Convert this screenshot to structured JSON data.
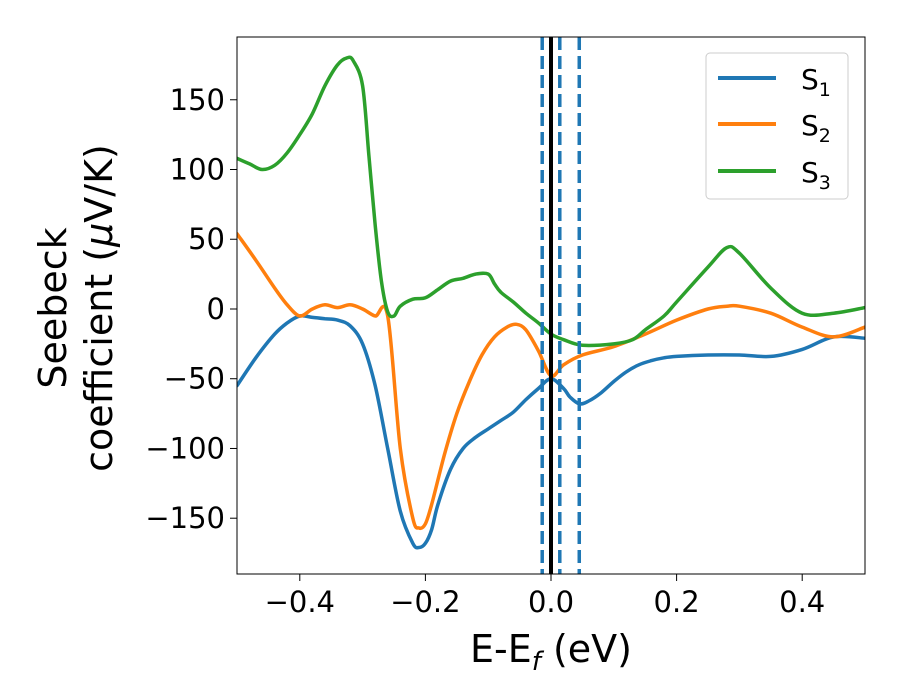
{
  "chart_data": {
    "type": "line",
    "xlabel": "E-E",
    "xlabel_sub": "f",
    "xlabel_unit": " (eV)",
    "ylabel_line1": "Seebeck",
    "ylabel_line2": "coefficient  (",
    "ylabel_mu": "μ",
    "ylabel_unit": "V/K)",
    "xlim": [
      -0.5,
      0.5
    ],
    "ylim": [
      -190,
      195
    ],
    "xticks": [
      -0.4,
      -0.2,
      0.0,
      0.2,
      0.4
    ],
    "xtick_labels": [
      "−0.4",
      "−0.2",
      "0.0",
      "0.2",
      "0.4"
    ],
    "yticks": [
      -150,
      -100,
      -50,
      0,
      50,
      100,
      150
    ],
    "ytick_labels": [
      "−150",
      "−100",
      "−50",
      "0",
      "50",
      "100",
      "150"
    ],
    "grid": false,
    "legend_position": "top-right",
    "vlines": [
      {
        "x": 0.0,
        "style": "solid",
        "color": "#000000"
      },
      {
        "x": -0.014,
        "style": "dashed",
        "color": "#1f77b4"
      },
      {
        "x": 0.014,
        "style": "dashed",
        "color": "#1f77b4"
      },
      {
        "x": 0.045,
        "style": "dashed",
        "color": "#1f77b4"
      }
    ],
    "series": [
      {
        "name": "S",
        "sub": "1",
        "color": "#1f77b4",
        "x": [
          -0.5,
          -0.47,
          -0.44,
          -0.42,
          -0.4,
          -0.38,
          -0.36,
          -0.34,
          -0.32,
          -0.3,
          -0.28,
          -0.26,
          -0.24,
          -0.22,
          -0.21,
          -0.2,
          -0.19,
          -0.18,
          -0.16,
          -0.14,
          -0.12,
          -0.1,
          -0.08,
          -0.06,
          -0.04,
          -0.02,
          0.0,
          0.02,
          0.03,
          0.045,
          0.06,
          0.08,
          0.1,
          0.12,
          0.14,
          0.16,
          0.18,
          0.2,
          0.25,
          0.3,
          0.35,
          0.4,
          0.45,
          0.5
        ],
        "y": [
          -55,
          -35,
          -18,
          -10,
          -5,
          -6,
          -7,
          -8,
          -12,
          -25,
          -55,
          -100,
          -145,
          -168,
          -171,
          -168,
          -158,
          -140,
          -115,
          -100,
          -92,
          -86,
          -80,
          -74,
          -65,
          -57,
          -50,
          -57,
          -63,
          -68,
          -66,
          -60,
          -52,
          -45,
          -40,
          -37,
          -35,
          -34,
          -33,
          -33,
          -34,
          -29,
          -20,
          -21
        ]
      },
      {
        "name": "S",
        "sub": "2",
        "color": "#ff7f0e",
        "x": [
          -0.5,
          -0.47,
          -0.44,
          -0.42,
          -0.4,
          -0.38,
          -0.36,
          -0.34,
          -0.32,
          -0.3,
          -0.28,
          -0.26,
          -0.24,
          -0.22,
          -0.21,
          -0.2,
          -0.19,
          -0.17,
          -0.15,
          -0.13,
          -0.11,
          -0.09,
          -0.07,
          -0.055,
          -0.04,
          -0.02,
          0.0,
          0.02,
          0.05,
          0.1,
          0.15,
          0.2,
          0.25,
          0.28,
          0.3,
          0.35,
          0.4,
          0.45,
          0.5
        ],
        "y": [
          54,
          35,
          15,
          3,
          -5,
          0,
          3,
          1,
          3,
          0,
          -5,
          -5,
          -100,
          -150,
          -157,
          -154,
          -140,
          -105,
          -75,
          -52,
          -33,
          -20,
          -13,
          -11,
          -15,
          -30,
          -48,
          -40,
          -33,
          -27,
          -18,
          -8,
          0,
          2,
          2,
          -3,
          -13,
          -20,
          -13
        ]
      },
      {
        "name": "S",
        "sub": "3",
        "color": "#2ca02c",
        "x": [
          -0.5,
          -0.48,
          -0.46,
          -0.44,
          -0.42,
          -0.4,
          -0.38,
          -0.36,
          -0.34,
          -0.325,
          -0.315,
          -0.3,
          -0.29,
          -0.28,
          -0.27,
          -0.26,
          -0.25,
          -0.24,
          -0.22,
          -0.2,
          -0.18,
          -0.16,
          -0.14,
          -0.12,
          -0.1,
          -0.09,
          -0.08,
          -0.06,
          -0.04,
          -0.02,
          0.0,
          0.02,
          0.05,
          0.1,
          0.13,
          0.15,
          0.18,
          0.2,
          0.25,
          0.28,
          0.3,
          0.35,
          0.4,
          0.45,
          0.5
        ],
        "y": [
          108,
          104,
          100,
          103,
          112,
          125,
          140,
          160,
          175,
          180,
          178,
          160,
          110,
          60,
          20,
          -2,
          -5,
          2,
          7,
          8,
          14,
          20,
          22,
          25,
          25,
          18,
          12,
          5,
          -3,
          -10,
          -18,
          -22,
          -26,
          -25,
          -22,
          -15,
          -5,
          5,
          30,
          44,
          40,
          15,
          -3,
          -3,
          1
        ]
      }
    ]
  }
}
